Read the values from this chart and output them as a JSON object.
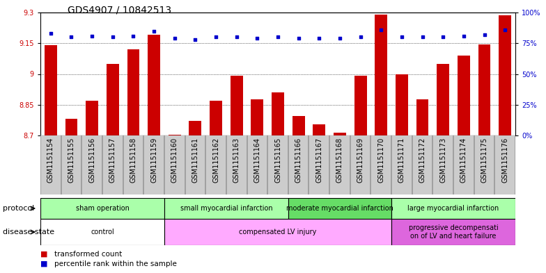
{
  "title": "GDS4907 / 10842513",
  "samples": [
    "GSM1151154",
    "GSM1151155",
    "GSM1151156",
    "GSM1151157",
    "GSM1151158",
    "GSM1151159",
    "GSM1151160",
    "GSM1151161",
    "GSM1151162",
    "GSM1151163",
    "GSM1151164",
    "GSM1151165",
    "GSM1151166",
    "GSM1151167",
    "GSM1151168",
    "GSM1151169",
    "GSM1151170",
    "GSM1151171",
    "GSM1151172",
    "GSM1151173",
    "GSM1151174",
    "GSM1151175",
    "GSM1151176"
  ],
  "bar_values": [
    9.14,
    8.78,
    8.87,
    9.05,
    9.12,
    9.19,
    8.703,
    8.77,
    8.87,
    8.99,
    8.875,
    8.91,
    8.795,
    8.755,
    8.715,
    8.99,
    9.29,
    9.0,
    8.875,
    9.05,
    9.09,
    9.145,
    9.285
  ],
  "percentile_values": [
    83,
    80,
    81,
    80,
    81,
    85,
    79,
    78,
    80,
    80,
    79,
    80,
    79,
    79,
    79,
    80,
    86,
    80,
    80,
    80,
    81,
    82,
    86
  ],
  "ylim_left": [
    8.7,
    9.3
  ],
  "ylim_right": [
    0,
    100
  ],
  "yticks_left": [
    8.7,
    8.85,
    9.0,
    9.15,
    9.3
  ],
  "yticks_right": [
    0,
    25,
    50,
    75,
    100
  ],
  "bar_color": "#cc0000",
  "dot_color": "#0000cc",
  "bar_bottom": 8.7,
  "protocol_groups": [
    {
      "label": "sham operation",
      "start": 0,
      "end": 6,
      "color": "#aaffaa"
    },
    {
      "label": "small myocardial infarction",
      "start": 6,
      "end": 12,
      "color": "#aaffaa"
    },
    {
      "label": "moderate myocardial infarction",
      "start": 12,
      "end": 17,
      "color": "#66dd66"
    },
    {
      "label": "large myocardial infarction",
      "start": 17,
      "end": 23,
      "color": "#aaffaa"
    }
  ],
  "disease_groups": [
    {
      "label": "control",
      "start": 0,
      "end": 6,
      "color": "#ffffff"
    },
    {
      "label": "compensated LV injury",
      "start": 6,
      "end": 17,
      "color": "#ffaaff"
    },
    {
      "label": "progressive decompensati\non of LV and heart failure",
      "start": 17,
      "end": 23,
      "color": "#dd66dd"
    }
  ],
  "legend_bar_label": "transformed count",
  "legend_dot_label": "percentile rank within the sample",
  "protocol_row_label": "protocol",
  "disease_row_label": "disease state",
  "title_fontsize": 10,
  "axis_fontsize": 7,
  "label_fontsize": 7,
  "row_fontsize": 7,
  "row_label_fontsize": 8,
  "legend_fontsize": 7.5,
  "xtick_bg_color": "#cccccc",
  "spine_color": "#000000"
}
